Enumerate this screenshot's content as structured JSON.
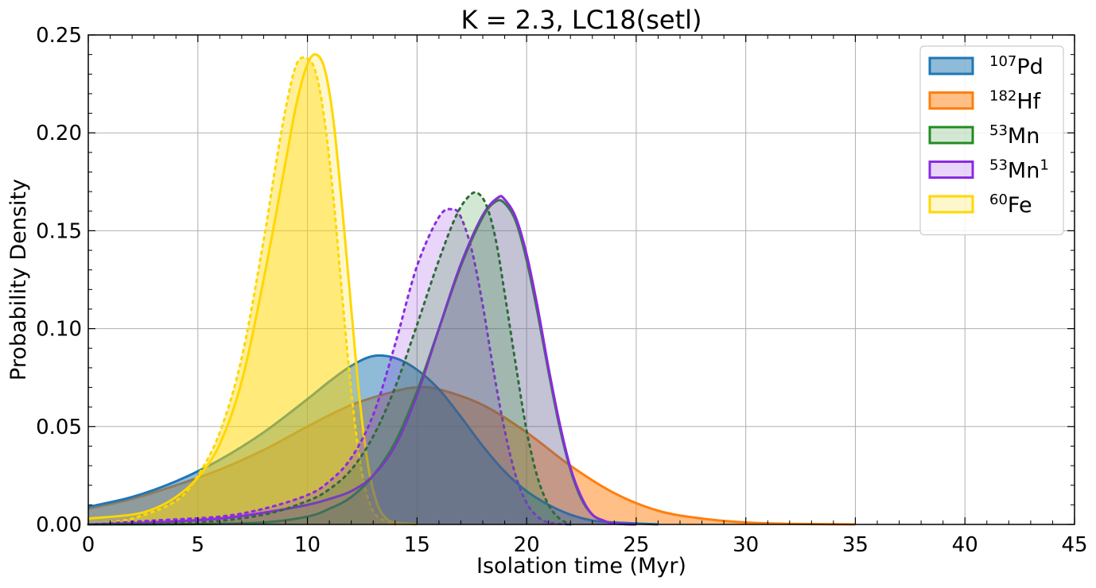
{
  "chart_data": {
    "type": "area",
    "title": "K = 2.3, LC18(setl)",
    "xlabel": "Isolation time (Myr)",
    "ylabel": "Probability Density",
    "xlim": [
      0,
      45
    ],
    "ylim": [
      0,
      0.25
    ],
    "x_ticks": [
      0,
      5,
      10,
      15,
      20,
      25,
      30,
      35,
      40,
      45
    ],
    "x_tick_labels": [
      "0",
      "5",
      "10",
      "15",
      "20",
      "25",
      "30",
      "35",
      "40",
      "45"
    ],
    "y_ticks": [
      0,
      0.05,
      0.1,
      0.15,
      0.2,
      0.25
    ],
    "y_tick_labels": [
      "0.00",
      "0.05",
      "0.10",
      "0.15",
      "0.20",
      "0.25"
    ],
    "grid": true,
    "legend_position": "top-right",
    "series": [
      {
        "name_sup": "107",
        "name_base": "Pd",
        "name_after": "",
        "color": "#1f77b4",
        "fill": "#1f77b4",
        "fill_opacity": 0.5,
        "line_style": "solid",
        "in_legend": true,
        "x": [
          0,
          2,
          4,
          6,
          8,
          10,
          11,
          12,
          13,
          14,
          15,
          16,
          17,
          18,
          19,
          20,
          21,
          22,
          23,
          24,
          26
        ],
        "y": [
          0.009,
          0.014,
          0.022,
          0.033,
          0.047,
          0.064,
          0.073,
          0.081,
          0.086,
          0.085,
          0.079,
          0.069,
          0.055,
          0.04,
          0.027,
          0.017,
          0.01,
          0.005,
          0.002,
          0.001,
          0.0
        ]
      },
      {
        "name_sup": "182",
        "name_base": "Hf",
        "name_after": "",
        "color": "#ff7f0e",
        "fill": "#ff7f0e",
        "fill_opacity": 0.5,
        "line_style": "solid",
        "in_legend": true,
        "x": [
          0,
          2,
          4,
          6,
          8,
          10,
          12,
          14,
          15,
          16,
          18,
          20,
          22,
          24,
          26,
          28,
          30,
          32,
          35
        ],
        "y": [
          0.008,
          0.013,
          0.02,
          0.028,
          0.038,
          0.05,
          0.061,
          0.068,
          0.07,
          0.069,
          0.061,
          0.047,
          0.03,
          0.016,
          0.007,
          0.003,
          0.001,
          0.0003,
          0.0
        ]
      },
      {
        "name_sup": "53",
        "name_base": "Mn",
        "name_after": "",
        "color": "#228b22",
        "fill": "#228b22",
        "fill_opacity": 0.2,
        "line_style": "solid",
        "in_legend": true,
        "x": [
          0,
          5,
          8,
          10,
          11,
          12,
          13,
          14,
          15,
          16,
          17,
          18,
          18.6,
          19,
          19.5,
          20,
          20.5,
          21,
          21.5,
          22,
          22.5,
          23,
          23.5,
          24,
          25
        ],
        "y": [
          0.0,
          0.0002,
          0.001,
          0.004,
          0.008,
          0.014,
          0.025,
          0.042,
          0.068,
          0.1,
          0.132,
          0.157,
          0.165,
          0.164,
          0.155,
          0.135,
          0.108,
          0.078,
          0.05,
          0.028,
          0.013,
          0.005,
          0.002,
          0.0005,
          0.0
        ]
      },
      {
        "name_sup": "53",
        "name_base": "Mn",
        "name_after": "1",
        "color": "#8a2be2",
        "fill": "#8a2be2",
        "fill_opacity": 0.2,
        "line_style": "solid",
        "in_legend": true,
        "x": [
          0,
          3,
          6,
          8,
          10,
          11,
          12,
          13,
          14,
          15,
          16,
          17,
          18,
          18.7,
          19,
          19.5,
          20,
          20.5,
          21,
          21.5,
          22,
          22.5,
          23,
          23.5,
          24,
          25
        ],
        "y": [
          0.0,
          0.001,
          0.003,
          0.006,
          0.01,
          0.013,
          0.017,
          0.025,
          0.04,
          0.066,
          0.1,
          0.133,
          0.158,
          0.167,
          0.166,
          0.157,
          0.138,
          0.111,
          0.08,
          0.052,
          0.029,
          0.014,
          0.005,
          0.002,
          0.0005,
          0.0
        ]
      },
      {
        "name_sup": "60",
        "name_base": "Fe",
        "name_after": "",
        "color": "#ffd700",
        "fill": "#ffd700",
        "fill_opacity": 0.2,
        "line_style": "solid",
        "in_legend": true,
        "x": [
          0,
          2,
          3,
          4,
          5,
          6,
          7,
          8,
          9,
          9.5,
          10,
          10.4,
          10.8,
          11.2,
          11.6,
          12,
          12.4,
          12.8,
          13.2,
          13.6,
          14,
          15
        ],
        "y": [
          0.003,
          0.005,
          0.008,
          0.014,
          0.024,
          0.041,
          0.073,
          0.125,
          0.185,
          0.215,
          0.235,
          0.24,
          0.232,
          0.205,
          0.16,
          0.11,
          0.062,
          0.028,
          0.01,
          0.003,
          0.001,
          0.0
        ]
      },
      {
        "name_sup": "",
        "name_base": "",
        "name_after": "",
        "color": "#ffd700",
        "fill": "#ffd700",
        "fill_opacity": 0.4,
        "line_style": "dashed",
        "in_legend": false,
        "x": [
          0,
          2,
          4,
          5,
          6,
          7,
          8,
          8.5,
          9,
          9.5,
          10,
          10.4,
          10.8,
          11.2,
          11.6,
          12,
          12.4,
          12.8,
          13.2,
          14
        ],
        "y": [
          0.0,
          0.003,
          0.012,
          0.025,
          0.047,
          0.085,
          0.145,
          0.18,
          0.212,
          0.235,
          0.238,
          0.23,
          0.205,
          0.165,
          0.115,
          0.068,
          0.032,
          0.012,
          0.004,
          0.0
        ]
      },
      {
        "name_sup": "",
        "name_base": "",
        "name_after": "",
        "color": "#8a2be2",
        "fill": "#8a2be2",
        "fill_opacity": 0.2,
        "line_style": "dashed",
        "in_legend": false,
        "x": [
          0,
          3,
          6,
          8,
          10,
          11,
          12,
          13,
          14,
          15,
          16,
          16.6,
          17,
          17.5,
          18,
          18.5,
          19,
          19.5,
          20,
          20.5,
          21,
          22
        ],
        "y": [
          0.0,
          0.002,
          0.004,
          0.008,
          0.015,
          0.022,
          0.034,
          0.056,
          0.092,
          0.132,
          0.157,
          0.161,
          0.157,
          0.14,
          0.112,
          0.078,
          0.048,
          0.025,
          0.011,
          0.004,
          0.001,
          0.0
        ]
      },
      {
        "name_sup": "",
        "name_base": "",
        "name_after": "",
        "color": "#2e6b3a",
        "fill": "#228b22",
        "fill_opacity": 0.2,
        "line_style": "dashed",
        "in_legend": false,
        "x": [
          0,
          5,
          8,
          10,
          11,
          12,
          13,
          14,
          15,
          16,
          16.8,
          17.4,
          17.8,
          18.2,
          18.6,
          19,
          19.5,
          20,
          20.5,
          21,
          21.5,
          22
        ],
        "y": [
          0.0,
          0.001,
          0.005,
          0.012,
          0.018,
          0.028,
          0.045,
          0.07,
          0.102,
          0.135,
          0.158,
          0.168,
          0.169,
          0.162,
          0.145,
          0.118,
          0.082,
          0.048,
          0.024,
          0.01,
          0.003,
          0.0
        ]
      }
    ]
  }
}
